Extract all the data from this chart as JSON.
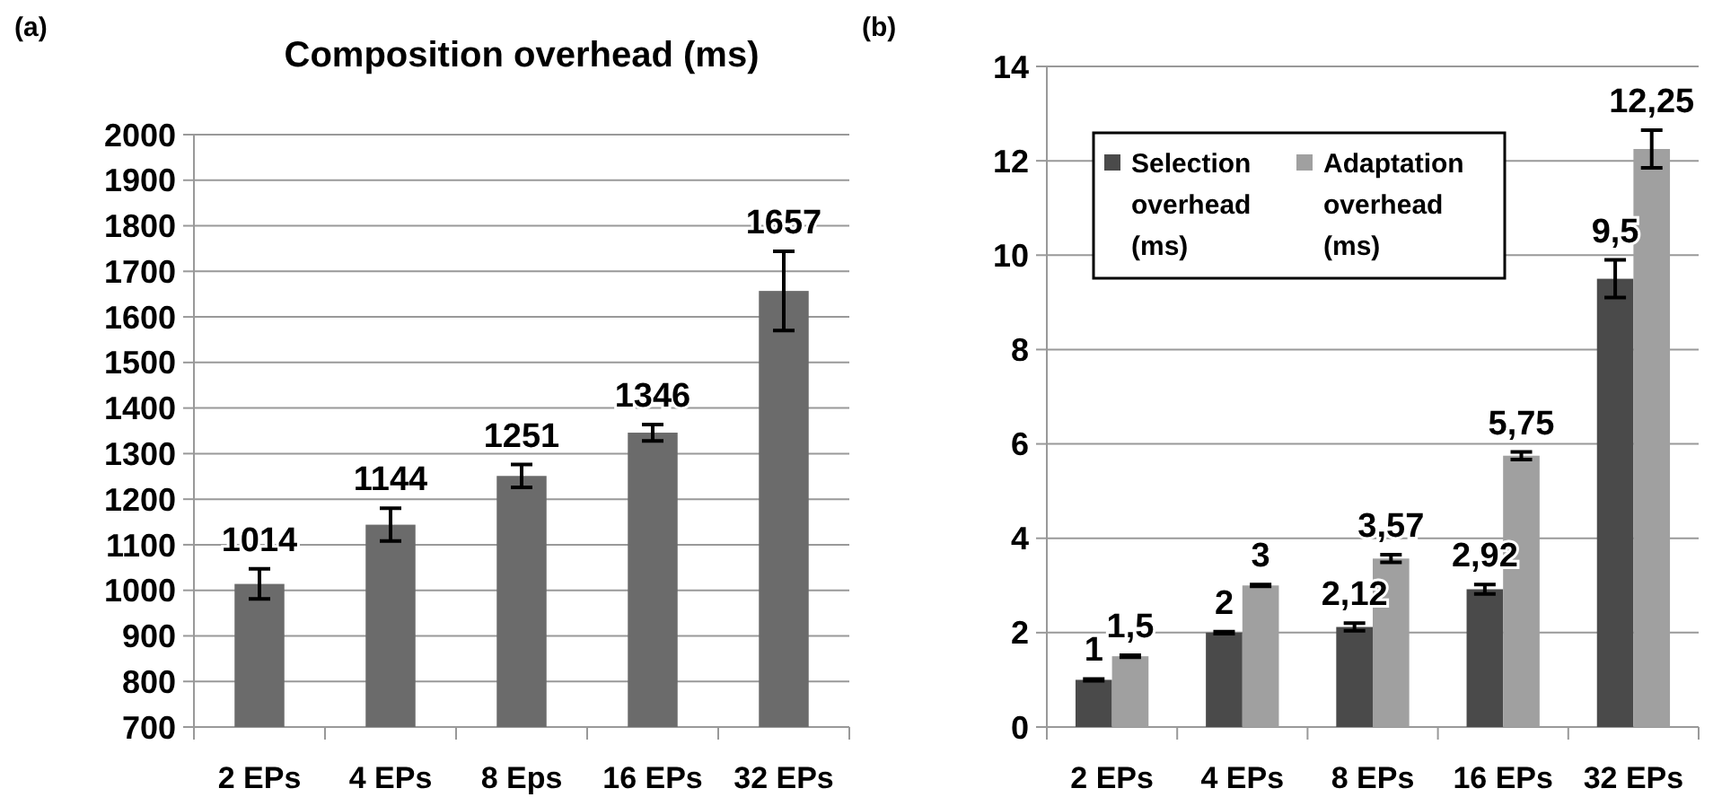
{
  "chart_data": [
    {
      "type": "bar",
      "title": "Composition overhead (ms)",
      "annotations": [
        "(a)"
      ],
      "categories": [
        "2 EPs",
        "4 EPs",
        "8 Eps",
        "16 EPs",
        "32 EPs"
      ],
      "values": [
        1014,
        1144,
        1251,
        1346,
        1657
      ],
      "errors": [
        33,
        36,
        25,
        18,
        87
      ],
      "color": "#6b6b6b",
      "data_labels": true,
      "ylim": [
        700,
        2000
      ],
      "yticks": [
        700,
        800,
        900,
        1000,
        1100,
        1200,
        1300,
        1400,
        1500,
        1600,
        1700,
        1800,
        1900,
        2000
      ],
      "grid": "y",
      "legend": false
    },
    {
      "type": "bar",
      "annotations": [
        "(b)"
      ],
      "categories": [
        "2 EPs",
        "4 EPs",
        "8 EPs",
        "16 EPs",
        "32 EPs"
      ],
      "series": [
        {
          "name": "Selection overhead (ms)",
          "color": "#4a4a4a",
          "values": [
            1,
            2,
            2.12,
            2.92,
            9.5
          ],
          "errors": [
            0.02,
            0.02,
            0.08,
            0.1,
            0.4
          ],
          "value_labels": [
            "1",
            "2",
            "2,12",
            "2,92",
            "9,5"
          ]
        },
        {
          "name": "Adaptation overhead (ms)",
          "color": "#a0a0a0",
          "values": [
            1.5,
            3,
            3.57,
            5.75,
            12.25
          ],
          "errors": [
            0.02,
            0.02,
            0.08,
            0.08,
            0.4
          ],
          "value_labels": [
            "1,5",
            "3",
            "3,57",
            "5,75",
            "12,25"
          ]
        }
      ],
      "ylim": [
        0,
        14
      ],
      "yticks": [
        0,
        2,
        4,
        6,
        8,
        10,
        12,
        14
      ],
      "grid": "y",
      "legend": "top left"
    }
  ]
}
